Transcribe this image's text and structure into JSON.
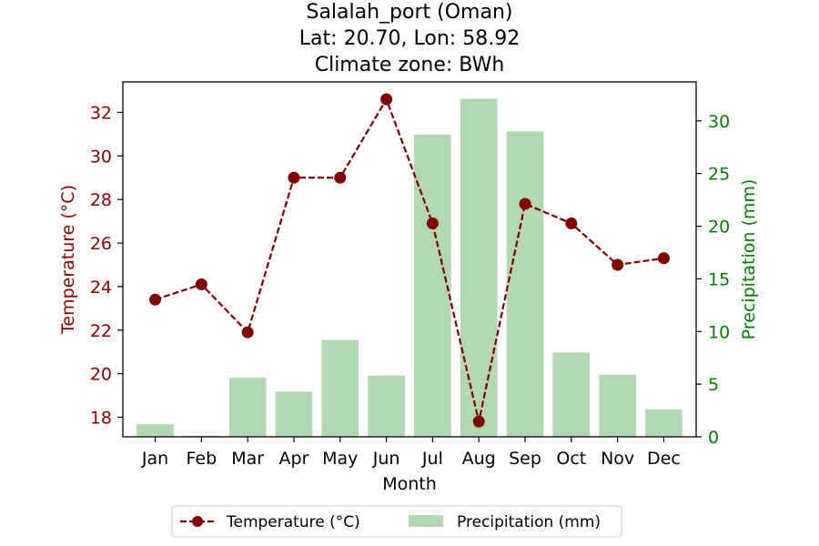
{
  "chart_data": {
    "type": "bar+line",
    "title_lines": [
      "Salalah_port (Oman)",
      "Lat: 20.70, Lon: 58.92",
      "Climate zone: BWh"
    ],
    "xlabel": "Month",
    "ylabel_left": "Temperature (°C)",
    "ylabel_right": "Precipitation (mm)",
    "categories": [
      "Jan",
      "Feb",
      "Mar",
      "Apr",
      "May",
      "Jun",
      "Jul",
      "Aug",
      "Sep",
      "Oct",
      "Nov",
      "Dec"
    ],
    "temperature": {
      "name": "Temperature (°C)",
      "color": "#800000",
      "values": [
        23.4,
        24.1,
        21.9,
        29.0,
        29.0,
        32.6,
        26.9,
        17.8,
        27.8,
        26.9,
        25.0,
        25.3
      ],
      "ylim": [
        17.1,
        33.4
      ],
      "ticks": [
        18,
        20,
        22,
        24,
        26,
        28,
        30,
        32
      ]
    },
    "precipitation": {
      "name": "Precipitation (mm)",
      "color": "#b2d8b2",
      "values": [
        1.2,
        0.1,
        5.6,
        4.3,
        9.2,
        5.8,
        28.7,
        32.1,
        29.0,
        8.0,
        5.9,
        2.6
      ],
      "ylim": [
        0,
        33.7
      ],
      "ticks": [
        0,
        5,
        10,
        15,
        20,
        25,
        30
      ]
    },
    "legend_position": "bottom-center"
  }
}
